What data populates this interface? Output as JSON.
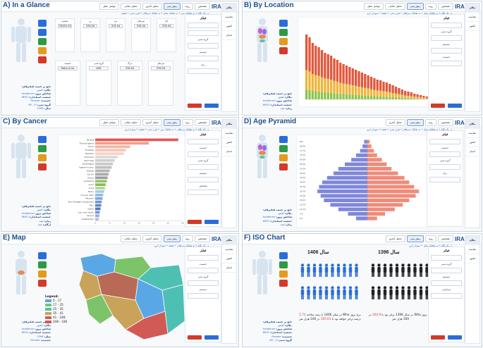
{
  "panel_titles": {
    "a": "A) In a Glance",
    "b": "B) By Location",
    "c": "C) By Cancer",
    "d": "D) Age Pyramid",
    "e": "E) Map",
    "f": "F) ISO Chart"
  },
  "logo_text": "IRANIAN",
  "tabs": [
    "تشخیص",
    "روند",
    "پیش بینی",
    "تحلیل آماری",
    "تحلیل مکانی",
    "عوامل خطر"
  ],
  "breadcrumb": {
    "a": "در یک نگاه • به تفکیک سن • به تفکیک محل • به تفکیک سرطان • هرم سنی • نقشه",
    "b": "در یک نگاه • به تفکیک محل • به تفکیک سرطان • هرم سنی • نقشه • نمودار ایزو",
    "c": "در یک نگاه • به تفکیک سرطان • به تفکیک سن • هرم سنی • نقشه • نمودار ایزو",
    "d": "در یک نگاه • به تفکیک محل • به تفکیک سرطان • هرم سنی • نقشه • نمودار ایزو",
    "e": "در یک نگاه • به تفکیک سرطان • نقشه • نمودار ایزو",
    "f": "در یک نگاه • به تفکیک محل • نمودار ایزو"
  },
  "filters_left": {
    "header": "تابع بر حسب فیلترهای:",
    "rows": [
      {
        "k": "مکان:",
        "v": "کشور"
      },
      {
        "k": "شاخص بروز:",
        "v": "Incidence"
      },
      {
        "k": "جمعیت استاندارد:",
        "v": "WHO"
      },
      {
        "k": "جنسیت:",
        "v": "Female"
      },
      {
        "k": "گروه سنی:",
        "v": "0 - 85"
      },
      {
        "k": "سال:",
        "v": "1396"
      },
      {
        "k": "زبان:",
        "v": "همه"
      },
      {
        "k": "ارگان:",
        "v": "همه"
      }
    ]
  },
  "right_panel": {
    "head": "فیلتر",
    "sections": [
      "گروه سنی",
      "سیستم",
      "جنسیت",
      "زبان",
      "تشخیص",
      "بیماریابی"
    ],
    "apply": "اعمال",
    "reset": "پاک کردن"
  },
  "right_menu": [
    "مکان",
    "مقایسه",
    "کشور",
    "استان"
  ],
  "glance": {
    "cards": [
      {
        "t": "کل",
        "v": "376.04"
      },
      {
        "t": "سرطان",
        "v": "376.04"
      },
      {
        "t": "مرد",
        "v": "376.04"
      },
      {
        "t": "زن",
        "v": "376.04"
      },
      {
        "t": "جمعیت",
        "v": "78190.19"
      }
    ],
    "cards2": [
      {
        "t": "سرطان",
        "v": "376.04"
      },
      {
        "t": "مرگ",
        "v": "376.04"
      },
      {
        "t": "گروه سنی",
        "v": "ASR"
      },
      {
        "t": "جمعیت",
        "v": "Ratio (f:m)"
      }
    ]
  },
  "location_chart": {
    "categories": [
      "1",
      "2",
      "3",
      "4",
      "5",
      "6",
      "7",
      "8",
      "9",
      "10",
      "11",
      "12",
      "13",
      "14",
      "15",
      "16",
      "17",
      "18",
      "19",
      "20",
      "21",
      "22",
      "23",
      "24",
      "25",
      "26",
      "27",
      "28",
      "29",
      "30",
      "31",
      "32",
      "33",
      "34",
      "35",
      "36",
      "37",
      "38",
      "39",
      "40"
    ],
    "values": [
      92,
      88,
      80,
      76,
      74,
      70,
      66,
      64,
      62,
      58,
      56,
      52,
      50,
      48,
      46,
      44,
      42,
      40,
      38,
      36,
      34,
      32,
      30,
      28,
      27,
      25,
      24,
      22,
      20,
      18,
      16,
      14,
      12,
      11,
      10,
      8,
      7,
      6,
      5,
      4
    ]
  },
  "cancer_chart": {
    "categories": [
      "Breast",
      "Thyroid gland",
      "Colon",
      "Prostate",
      "Bladder",
      "Stomach",
      "Pancreas",
      "Esophagus",
      "Sigmoid colon",
      "Kidney",
      "Cervix",
      "Ovary",
      "Leukemia",
      "Liver",
      "Lung",
      "Brain",
      "Corpus uteri",
      "Rectum",
      "Non-Hodgkin lymphoma",
      "Skin",
      "Other",
      "Lip, oral cavity",
      "Larynx",
      "Gallbladder"
    ],
    "values": [
      34.2,
      22.1,
      14.4,
      12.6,
      11.8,
      9.2,
      8.0,
      7.3,
      6.8,
      6.0,
      5.5,
      5.1,
      4.8,
      4.3,
      4.0,
      3.7,
      3.3,
      3.0,
      2.7,
      2.5,
      2.2,
      1.9,
      1.7,
      1.5
    ],
    "xlim": [
      0,
      36
    ]
  },
  "pyramid": {
    "ages": [
      "85+",
      "80-84",
      "75-79",
      "70-74",
      "65-69",
      "60-64",
      "55-59",
      "50-54",
      "45-49",
      "40-44",
      "35-39",
      "30-34",
      "25-29",
      "20-24",
      "15-19",
      "10-14",
      "5-9",
      "0-4"
    ],
    "male": [
      4,
      6,
      9,
      14,
      20,
      28,
      36,
      42,
      50,
      56,
      60,
      62,
      58,
      54,
      46,
      36,
      24,
      14
    ],
    "female": [
      3,
      5,
      8,
      12,
      18,
      24,
      30,
      38,
      46,
      52,
      58,
      64,
      60,
      52,
      44,
      34,
      22,
      12
    ]
  },
  "map_legend": {
    "title": "Legend:",
    "items": [
      {
        "label": "0 - 17",
        "color": "#5aa7e6"
      },
      {
        "label": "17 - 25",
        "color": "#7cc36a"
      },
      {
        "label": "25 - 35",
        "color": "#4ec0b3"
      },
      {
        "label": "35 - 41",
        "color": "#c9a35a"
      },
      {
        "label": "41 - 248",
        "color": "#b86a57"
      },
      {
        "label": "248 - 336",
        "color": "#d15a55"
      }
    ]
  },
  "iso": {
    "year_left": "سال 1406",
    "year_right": "سال 1396",
    "text_left_1": "نرخ بروز  Who در سال 1406 با رشد سالانه",
    "text_left_pct": "5.73",
    "text_left_2": "درصد برابر خواهد بود با",
    "text_left_val": "165.01",
    "text_left_3": "در 100 هزار نفر",
    "text_right_1": "نرخ بروز  Who در سال 1396 برابر بود با",
    "text_right_val": "104.9",
    "text_right_2": "در 100 هزار نفر"
  }
}
